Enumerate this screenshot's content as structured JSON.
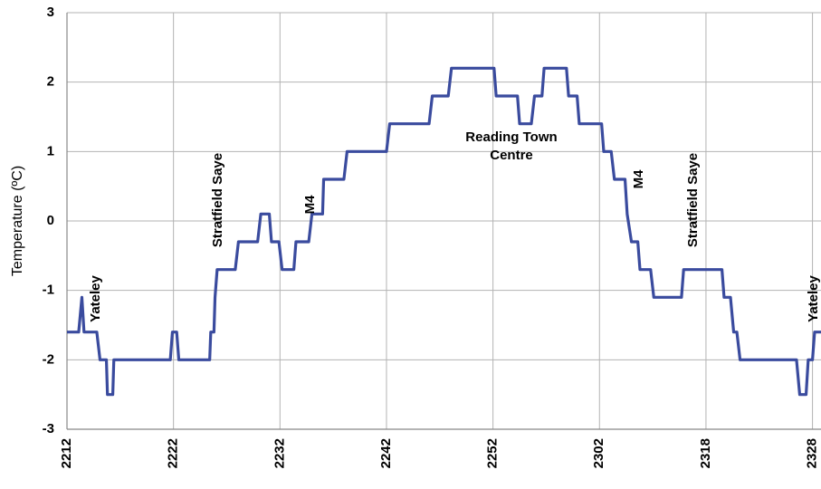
{
  "chart_data": {
    "type": "line",
    "y_label": "Temperature (ºC)",
    "xlim": [
      0,
      7.08
    ],
    "xticks": [
      {
        "value": 0,
        "label": "2212"
      },
      {
        "value": 1,
        "label": "2222"
      },
      {
        "value": 2,
        "label": "2232"
      },
      {
        "value": 3,
        "label": "2242"
      },
      {
        "value": 4,
        "label": "2252"
      },
      {
        "value": 5,
        "label": "2302"
      },
      {
        "value": 6,
        "label": "2318"
      },
      {
        "value": 7,
        "label": "2328"
      }
    ],
    "ylim": [
      -3,
      3
    ],
    "yticks": [
      -3,
      -2,
      -1,
      0,
      1,
      2,
      3
    ],
    "grid": true,
    "annotations": [
      "Yateley",
      "Stratfield Saye",
      "M4",
      "Reading Town Centre",
      "M4",
      "Stratfield Saye",
      "Yateley"
    ],
    "series": [
      {
        "color": "#3a4b9e",
        "x": [
          0,
          0.11,
          0.14,
          0.16,
          0.28,
          0.31,
          0.37,
          0.38,
          0.43,
          0.44,
          0.97,
          0.99,
          1.03,
          1.05,
          1.34,
          1.35,
          1.38,
          1.39,
          1.41,
          1.58,
          1.61,
          1.79,
          1.82,
          1.9,
          1.92,
          1.99,
          2.02,
          2.13,
          2.15,
          2.27,
          2.3,
          2.4,
          2.41,
          2.6,
          2.63,
          3.0,
          3.03,
          3.4,
          3.43,
          3.58,
          3.61,
          4.01,
          4.03,
          4.23,
          4.25,
          4.36,
          4.39,
          4.46,
          4.48,
          4.69,
          4.71,
          4.79,
          4.81,
          5.02,
          5.04,
          5.11,
          5.14,
          5.24,
          5.26,
          5.3,
          5.36,
          5.38,
          5.48,
          5.51,
          5.77,
          5.79,
          6.15,
          6.17,
          6.23,
          6.26,
          6.29,
          6.32,
          6.85,
          6.88,
          6.94,
          6.96,
          7.0,
          7.02,
          7.08
        ],
        "values": [
          -1.6,
          -1.6,
          -1.1,
          -1.6,
          -1.6,
          -2.0,
          -2.0,
          -2.5,
          -2.5,
          -2.0,
          -2.0,
          -1.6,
          -1.6,
          -2.0,
          -2.0,
          -1.6,
          -1.6,
          -1.1,
          -0.7,
          -0.7,
          -0.3,
          -0.3,
          0.1,
          0.1,
          -0.3,
          -0.3,
          -0.7,
          -0.7,
          -0.3,
          -0.3,
          0.1,
          0.1,
          0.6,
          0.6,
          1.0,
          1.0,
          1.4,
          1.4,
          1.8,
          1.8,
          2.2,
          2.2,
          1.8,
          1.8,
          1.4,
          1.4,
          1.8,
          1.8,
          2.2,
          2.2,
          1.8,
          1.8,
          1.4,
          1.4,
          1.0,
          1.0,
          0.6,
          0.6,
          0.1,
          -0.3,
          -0.3,
          -0.7,
          -0.7,
          -1.1,
          -1.1,
          -0.7,
          -0.7,
          -1.1,
          -1.1,
          -1.6,
          -1.6,
          -2.0,
          -2.0,
          -2.5,
          -2.5,
          -2.0,
          -2.0,
          -1.6,
          -1.6
        ]
      }
    ]
  }
}
